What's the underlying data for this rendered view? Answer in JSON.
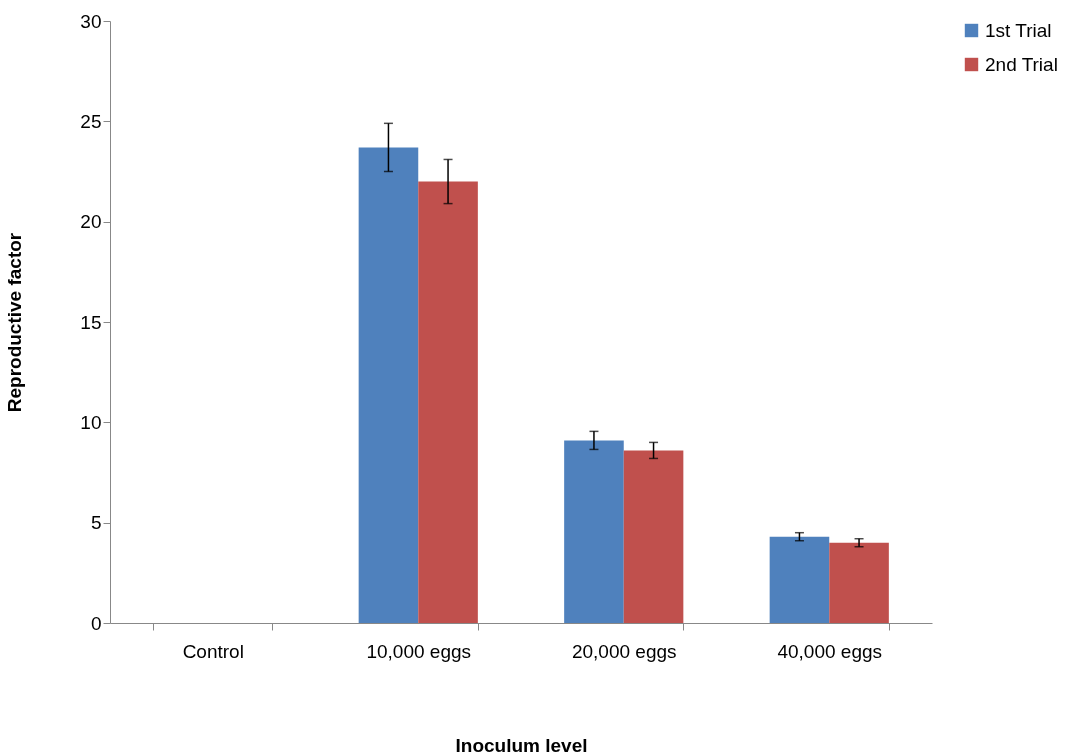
{
  "chart_data": {
    "type": "bar",
    "xlabel": "Inoculum level",
    "ylabel": "Reproductive factor",
    "categories": [
      "Control",
      "10,000 eggs",
      "20,000 eggs",
      "40,000 eggs"
    ],
    "series": [
      {
        "name": "1st Trial",
        "color": "#4f81bd",
        "values": [
          0,
          23.7,
          9.1,
          4.3
        ],
        "errors": [
          null,
          1.2,
          0.45,
          0.2
        ]
      },
      {
        "name": "2nd Trial",
        "color": "#c0504d",
        "values": [
          0,
          22.0,
          8.6,
          4.0
        ],
        "errors": [
          null,
          1.1,
          0.4,
          0.2
        ]
      }
    ],
    "ylim": [
      0,
      30
    ],
    "yticks": [
      0,
      5,
      10,
      15,
      20,
      25,
      30
    ],
    "grid": false,
    "legend": "right"
  }
}
